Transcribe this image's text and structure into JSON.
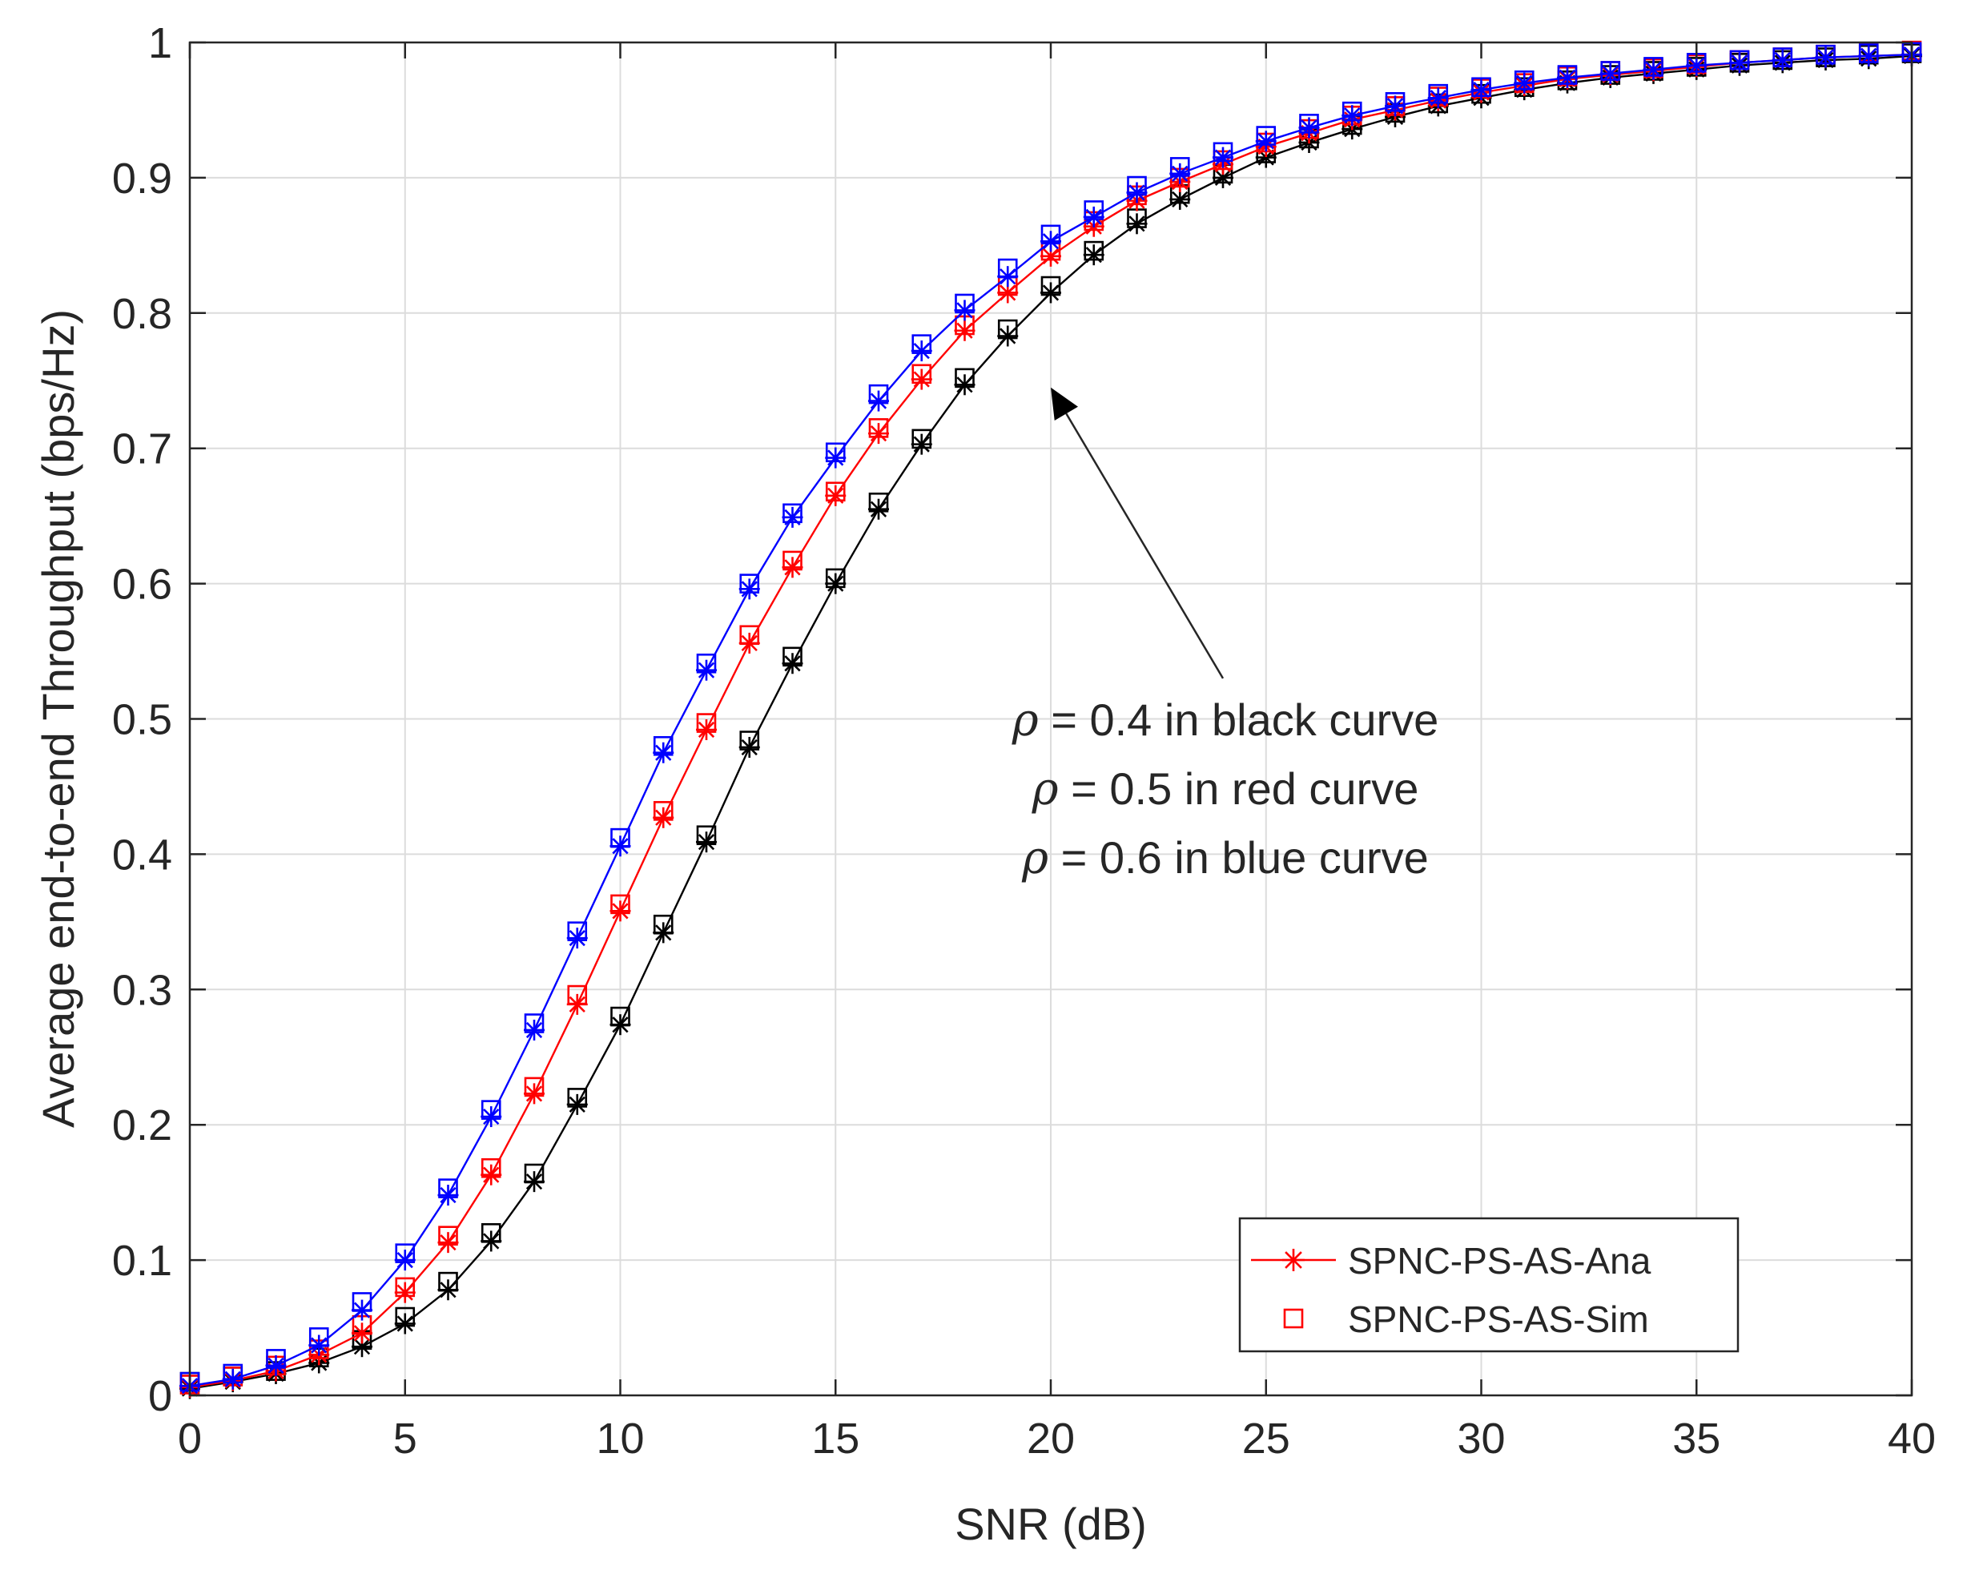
{
  "chart_data": {
    "type": "line",
    "title": "",
    "xlabel": "SNR (dB)",
    "ylabel": "Average end-to-end Throughput (bps/Hz)",
    "xlim": [
      0,
      40
    ],
    "ylim": [
      0,
      1
    ],
    "xticks": [
      0,
      5,
      10,
      15,
      20,
      25,
      30,
      35,
      40
    ],
    "xtick_labels": [
      "0",
      "5",
      "10",
      "15",
      "20",
      "25",
      "30",
      "35",
      "40"
    ],
    "yticks": [
      0,
      0.1,
      0.2,
      0.3,
      0.4,
      0.5,
      0.6,
      0.7,
      0.8,
      0.9,
      1
    ],
    "ytick_labels": [
      "0",
      "0.1",
      "0.2",
      "0.3",
      "0.4",
      "0.5",
      "0.6",
      "0.7",
      "0.8",
      "0.9",
      "1"
    ],
    "grid": true,
    "x": [
      0,
      1,
      2,
      3,
      4,
      5,
      6,
      7,
      8,
      9,
      10,
      11,
      12,
      13,
      14,
      15,
      16,
      17,
      18,
      19,
      20,
      21,
      22,
      23,
      24,
      25,
      26,
      27,
      28,
      29,
      30,
      31,
      32,
      33,
      34,
      35,
      36,
      37,
      38,
      39,
      40
    ],
    "series": [
      {
        "name": "rho = 0.4",
        "color": "#000000",
        "values": [
          0.005,
          0.01,
          0.016,
          0.024,
          0.036,
          0.053,
          0.078,
          0.114,
          0.158,
          0.215,
          0.274,
          0.342,
          0.409,
          0.479,
          0.541,
          0.6,
          0.655,
          0.703,
          0.747,
          0.783,
          0.815,
          0.843,
          0.866,
          0.884,
          0.9,
          0.915,
          0.926,
          0.936,
          0.945,
          0.953,
          0.959,
          0.965,
          0.97,
          0.974,
          0.977,
          0.98,
          0.983,
          0.985,
          0.987,
          0.988,
          0.99
        ],
        "sim_values": [
          0.01,
          0.014,
          0.018,
          0.028,
          0.041,
          0.058,
          0.084,
          0.12,
          0.164,
          0.22,
          0.28,
          0.348,
          0.414,
          0.484,
          0.546,
          0.604,
          0.66,
          0.707,
          0.752,
          0.788,
          0.82,
          0.846,
          0.87,
          0.888,
          0.903,
          0.918,
          0.929,
          0.939,
          0.948,
          0.955,
          0.962,
          0.967,
          0.972,
          0.976,
          0.979,
          0.982,
          0.985,
          0.987,
          0.989,
          0.991,
          0.992
        ]
      },
      {
        "name": "rho = 0.5",
        "color": "#ff0000",
        "values": [
          0.006,
          0.011,
          0.018,
          0.03,
          0.046,
          0.076,
          0.113,
          0.163,
          0.223,
          0.289,
          0.358,
          0.427,
          0.492,
          0.556,
          0.612,
          0.665,
          0.711,
          0.751,
          0.787,
          0.815,
          0.842,
          0.864,
          0.883,
          0.897,
          0.91,
          0.923,
          0.933,
          0.943,
          0.95,
          0.957,
          0.963,
          0.968,
          0.973,
          0.976,
          0.979,
          0.982,
          0.985,
          0.987,
          0.989,
          0.99,
          0.991
        ],
        "sim_values": [
          0.008,
          0.014,
          0.022,
          0.034,
          0.052,
          0.08,
          0.118,
          0.168,
          0.228,
          0.296,
          0.363,
          0.432,
          0.497,
          0.562,
          0.617,
          0.668,
          0.715,
          0.755,
          0.791,
          0.82,
          0.846,
          0.868,
          0.887,
          0.9,
          0.913,
          0.926,
          0.936,
          0.946,
          0.953,
          0.96,
          0.966,
          0.97,
          0.975,
          0.979,
          0.981,
          0.984,
          0.987,
          0.989,
          0.991,
          0.993,
          0.994
        ]
      },
      {
        "name": "rho = 0.6",
        "color": "#0000ff",
        "values": [
          0.007,
          0.012,
          0.022,
          0.037,
          0.063,
          0.1,
          0.148,
          0.206,
          0.27,
          0.338,
          0.406,
          0.475,
          0.536,
          0.596,
          0.649,
          0.693,
          0.735,
          0.772,
          0.802,
          0.827,
          0.853,
          0.871,
          0.889,
          0.903,
          0.915,
          0.927,
          0.937,
          0.946,
          0.953,
          0.959,
          0.965,
          0.97,
          0.974,
          0.977,
          0.98,
          0.983,
          0.985,
          0.987,
          0.989,
          0.99,
          0.991
        ],
        "sim_values": [
          0.01,
          0.016,
          0.027,
          0.043,
          0.069,
          0.105,
          0.153,
          0.211,
          0.275,
          0.343,
          0.412,
          0.48,
          0.541,
          0.6,
          0.652,
          0.697,
          0.74,
          0.777,
          0.807,
          0.833,
          0.858,
          0.876,
          0.894,
          0.908,
          0.919,
          0.931,
          0.94,
          0.949,
          0.956,
          0.962,
          0.967,
          0.972,
          0.976,
          0.979,
          0.982,
          0.985,
          0.987,
          0.989,
          0.991,
          0.992,
          0.993
        ]
      }
    ],
    "annotation": {
      "arrow_from": [
        24,
        0.53
      ],
      "arrow_to": [
        20,
        0.745
      ],
      "lines": [
        {
          "symbol": "ρ",
          "text": " = 0.4 in black curve"
        },
        {
          "symbol": "ρ",
          "text": " = 0.5 in red curve"
        },
        {
          "symbol": "ρ",
          "text": " = 0.6 in blue curve"
        }
      ]
    },
    "legend": {
      "position": "bottom-right",
      "entries": [
        {
          "label": "SPNC-PS-AS-Ana",
          "marker": "asterisk-line",
          "color": "#ff0000"
        },
        {
          "label": "SPNC-PS-AS-Sim",
          "marker": "square",
          "color": "#ff0000"
        }
      ]
    }
  }
}
